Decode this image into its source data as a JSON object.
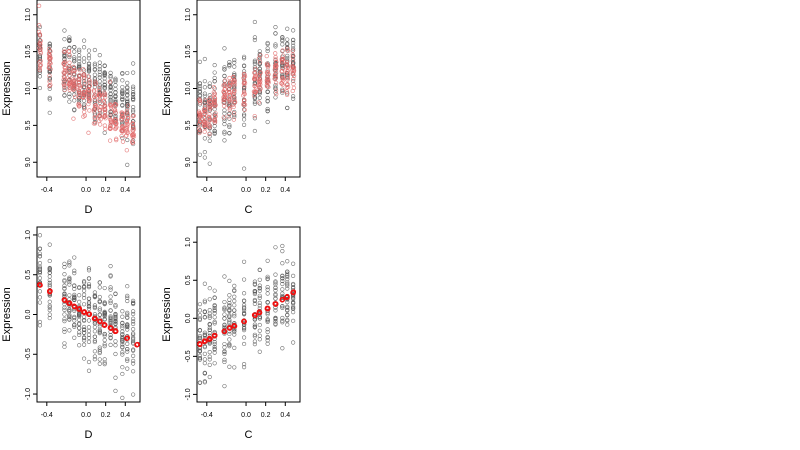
{
  "chart_data": [
    {
      "type": "scatter",
      "xlabel": "D",
      "ylabel": "Expression",
      "xlim": [
        -0.5,
        0.55
      ],
      "ylim": [
        8.8,
        11.2
      ],
      "xticks": [
        -0.4,
        0.0,
        0.2,
        0.4
      ],
      "xtick_labels": [
        "-0.4",
        "0.0",
        "0.2",
        "0.4"
      ],
      "yticks": [
        9.0,
        9.5,
        10.0,
        10.5,
        11.0
      ],
      "ytick_labels": [
        "9.0",
        "9.5",
        "10.0",
        "10.5",
        "11.0"
      ],
      "groups_x": [
        -0.47,
        -0.37,
        -0.22,
        -0.17,
        -0.12,
        -0.07,
        -0.02,
        0.03,
        0.09,
        0.14,
        0.19,
        0.25,
        0.3,
        0.37,
        0.42,
        0.48
      ],
      "observed_center": [
        10.5,
        10.3,
        10.3,
        10.3,
        10.2,
        10.1,
        10.05,
        10.05,
        10.0,
        10.0,
        9.95,
        9.9,
        9.85,
        9.85,
        9.8,
        9.8
      ],
      "observed_spread": 0.4,
      "fitted_center": [
        10.55,
        10.4,
        10.25,
        10.2,
        10.1,
        10.05,
        9.95,
        9.9,
        9.8,
        9.75,
        9.7,
        9.6,
        9.55,
        9.5,
        9.45,
        9.4
      ],
      "fitted_spread": 0.25,
      "series": [
        {
          "color": "#555555"
        },
        {
          "color": "#e26a6a"
        }
      ]
    },
    {
      "type": "scatter",
      "xlabel": "C",
      "ylabel": "Expression",
      "xlim": [
        -0.5,
        0.55
      ],
      "ylim": [
        8.8,
        11.2
      ],
      "xticks": [
        -0.4,
        0.0,
        0.2,
        0.4
      ],
      "xtick_labels": [
        "-0.4",
        "0.0",
        "0.2",
        "0.4"
      ],
      "yticks": [
        9.0,
        9.5,
        10.0,
        10.5,
        11.0
      ],
      "ytick_labels": [
        "9.0",
        "9.5",
        "10.0",
        "10.5",
        "11.0"
      ],
      "groups_x": [
        -0.47,
        -0.42,
        -0.37,
        -0.32,
        -0.22,
        -0.17,
        -0.12,
        -0.02,
        0.09,
        0.14,
        0.22,
        0.3,
        0.37,
        0.42,
        0.48
      ],
      "observed_center": [
        9.7,
        9.75,
        9.75,
        9.8,
        9.9,
        9.95,
        10.0,
        10.0,
        10.05,
        10.1,
        10.15,
        10.2,
        10.25,
        10.3,
        10.35
      ],
      "observed_spread": 0.45,
      "fitted_center": [
        9.6,
        9.65,
        9.7,
        9.75,
        9.85,
        9.9,
        9.95,
        10.0,
        10.05,
        10.1,
        10.15,
        10.2,
        10.25,
        10.25,
        10.3
      ],
      "fitted_spread": 0.25,
      "series": [
        {
          "color": "#555555"
        },
        {
          "color": "#e26a6a"
        }
      ]
    },
    {
      "type": "scatter",
      "xlabel": "D",
      "ylabel": "Expression",
      "xlim": [
        -0.5,
        0.55
      ],
      "ylim": [
        -1.1,
        1.1
      ],
      "xticks": [
        -0.4,
        0.0,
        0.2,
        0.4
      ],
      "xtick_labels": [
        "-0.4",
        "0.0",
        "0.2",
        "0.4"
      ],
      "yticks": [
        -1.0,
        -0.5,
        0.0,
        0.5,
        1.0
      ],
      "ytick_labels": [
        "-1.0",
        "-0.5",
        "0.0",
        "0.5",
        "1.0"
      ],
      "groups_x": [
        -0.47,
        -0.37,
        -0.22,
        -0.17,
        -0.12,
        -0.07,
        -0.02,
        0.03,
        0.09,
        0.14,
        0.19,
        0.25,
        0.3,
        0.37,
        0.42,
        0.48
      ],
      "observed_center": [
        0.45,
        0.3,
        0.2,
        0.15,
        0.1,
        0.05,
        0.05,
        0.0,
        -0.05,
        -0.05,
        -0.1,
        -0.1,
        -0.15,
        -0.2,
        -0.25,
        -0.3
      ],
      "observed_spread": 0.45,
      "fitted": {
        "x": [
          -0.47,
          -0.37,
          -0.22,
          -0.17,
          -0.12,
          -0.07,
          -0.02,
          0.03,
          0.09,
          0.14,
          0.19,
          0.25,
          0.3,
          0.42,
          0.52
        ],
        "y": [
          0.37,
          0.29,
          0.18,
          0.14,
          0.1,
          0.07,
          0.03,
          0.0,
          -0.05,
          -0.09,
          -0.13,
          -0.17,
          -0.21,
          -0.3,
          -0.38
        ]
      },
      "series": [
        {
          "color": "#555555"
        },
        {
          "color": "#ee1111"
        }
      ]
    },
    {
      "type": "scatter",
      "xlabel": "C",
      "ylabel": "Expression",
      "xlim": [
        -0.5,
        0.55
      ],
      "ylim": [
        -1.1,
        1.2
      ],
      "xticks": [
        -0.4,
        0.0,
        0.2,
        0.4
      ],
      "xtick_labels": [
        "-0.4",
        "0.0",
        "0.2",
        "0.4"
      ],
      "yticks": [
        -1.0,
        -0.5,
        0.0,
        0.5,
        1.0
      ],
      "ytick_labels": [
        "-1.0",
        "-0.5",
        "0.0",
        "0.5",
        "1.0"
      ],
      "groups_x": [
        -0.47,
        -0.42,
        -0.37,
        -0.32,
        -0.22,
        -0.17,
        -0.12,
        -0.02,
        0.09,
        0.14,
        0.22,
        0.3,
        0.37,
        0.42,
        0.48
      ],
      "observed_center": [
        -0.3,
        -0.25,
        -0.2,
        -0.15,
        -0.1,
        -0.05,
        0.0,
        0.0,
        0.05,
        0.1,
        0.15,
        0.2,
        0.25,
        0.3,
        0.35
      ],
      "observed_spread": 0.45,
      "fitted": {
        "x": [
          -0.47,
          -0.42,
          -0.37,
          -0.32,
          -0.22,
          -0.17,
          -0.12,
          -0.02,
          0.09,
          0.14,
          0.22,
          0.3,
          0.37,
          0.42,
          0.48
        ],
        "y": [
          -0.34,
          -0.3,
          -0.27,
          -0.23,
          -0.17,
          -0.13,
          -0.1,
          -0.04,
          0.04,
          0.08,
          0.13,
          0.19,
          0.24,
          0.28,
          0.34
        ]
      },
      "series": [
        {
          "color": "#555555"
        },
        {
          "color": "#ee1111"
        }
      ]
    }
  ]
}
